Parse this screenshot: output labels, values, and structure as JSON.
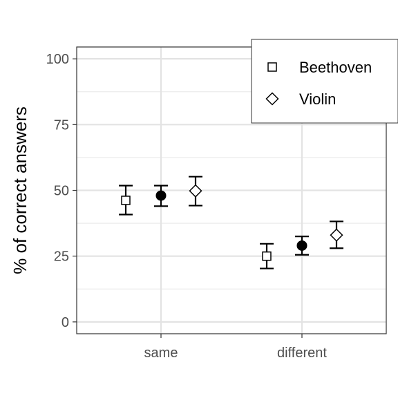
{
  "chart_data": {
    "type": "scatter",
    "ylabel": "% of correct answers",
    "xlabel": "",
    "ylim": [
      -4.5,
      104.5
    ],
    "yticks": [
      0,
      25,
      50,
      75,
      100
    ],
    "ytick_labels": [
      "0",
      "25",
      "50",
      "75",
      "100"
    ],
    "categories": [
      "same",
      "different"
    ],
    "grid": true,
    "legend_position": "top-right",
    "series": [
      {
        "name": "Beethoven",
        "marker": "square-open",
        "values": [
          46.2,
          25.0
        ],
        "err_low": [
          40.8,
          20.3
        ],
        "err_high": [
          51.8,
          29.7
        ]
      },
      {
        "name": "",
        "marker": "circle-filled",
        "values": [
          48.0,
          29.0
        ],
        "err_low": [
          44.0,
          25.5
        ],
        "err_high": [
          51.8,
          32.5
        ]
      },
      {
        "name": "Violin",
        "marker": "diamond-open",
        "values": [
          49.8,
          33.0
        ],
        "err_low": [
          44.2,
          28.0
        ],
        "err_high": [
          55.2,
          38.2
        ]
      }
    ]
  }
}
